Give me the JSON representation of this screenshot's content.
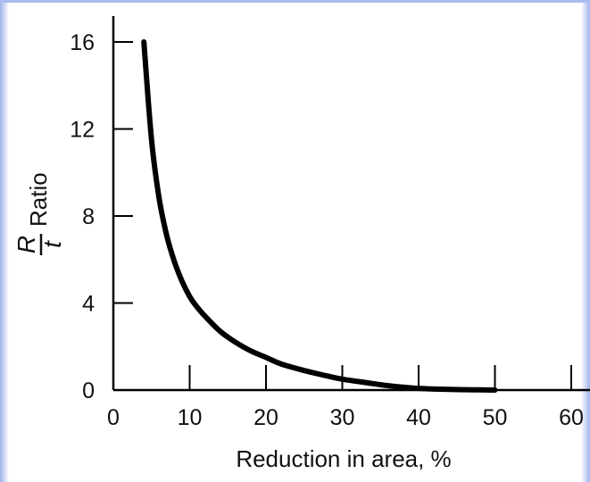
{
  "chart_data": {
    "type": "line",
    "xlabel": "Reduction in area, %",
    "ylabel": {
      "numerator": "R",
      "denominator": "t",
      "text": "Ratio"
    },
    "xlim": [
      0,
      60
    ],
    "ylim": [
      0,
      16
    ],
    "x_ticks": [
      0,
      10,
      20,
      30,
      40,
      50,
      60
    ],
    "y_ticks": [
      0,
      4,
      8,
      12,
      16
    ],
    "grid": false,
    "series": [
      {
        "x": [
          4,
          5,
          6,
          7,
          8,
          9,
          10,
          11,
          12,
          14,
          16,
          18,
          20,
          22,
          25,
          28,
          30,
          33,
          36,
          40,
          44,
          48,
          50
        ],
        "y": [
          16,
          11.5,
          8.8,
          7.1,
          5.9,
          5.0,
          4.3,
          3.8,
          3.4,
          2.7,
          2.2,
          1.8,
          1.5,
          1.2,
          0.9,
          0.65,
          0.5,
          0.35,
          0.2,
          0.08,
          0.03,
          0.01,
          0
        ]
      }
    ]
  }
}
